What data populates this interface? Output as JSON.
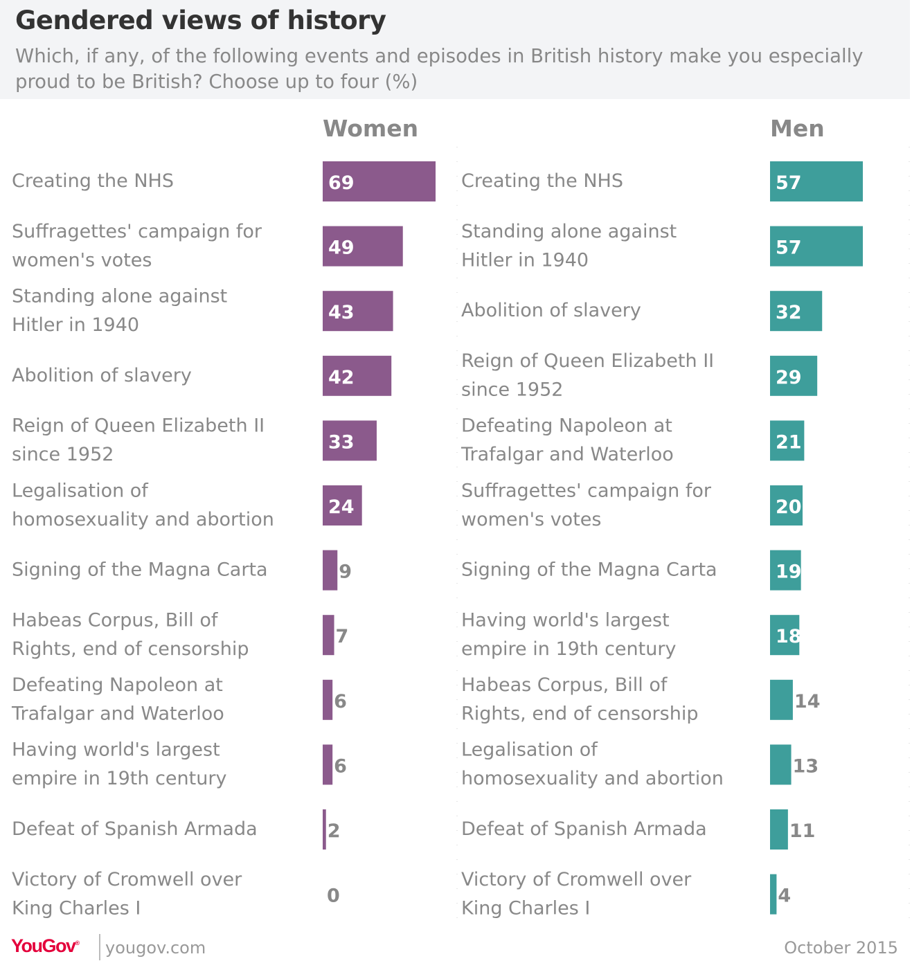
{
  "title": "Gendered views of history",
  "subtitle": "Which, if any, of the following events and episodes in British history make you especially proud to be British? Choose up to four (%)",
  "footer": {
    "brand": "YouGov",
    "site": "yougov.com",
    "date": "October 2015"
  },
  "colors": {
    "women": "#8b5a8c",
    "men": "#3e9e9b",
    "label_text": "#888888",
    "value_in_bar": "#ffffff",
    "value_outside_bar": "#888888",
    "brand": "#e4003b"
  },
  "chart_data": [
    {
      "type": "bar",
      "orientation": "horizontal",
      "title": "Women",
      "categories": [
        "Creating the NHS",
        "Suffragettes' campaign for women's votes",
        "Standing alone against Hitler in 1940",
        "Abolition of slavery",
        "Reign of Queen Elizabeth II since 1952",
        "Legalisation of homosexuality and abortion",
        "Signing of the Magna Carta",
        "Habeas Corpus, Bill of Rights, end of censorship",
        "Defeating Napoleon at Trafalgar and Waterloo",
        "Having world's largest empire in 19th century",
        "Defeat of Spanish Armada",
        "Victory of Cromwell over King Charles I"
      ],
      "values": [
        69,
        49,
        43,
        42,
        33,
        24,
        9,
        7,
        6,
        6,
        2,
        0
      ],
      "xlim": [
        0,
        69
      ],
      "grid": false,
      "color": "#8b5a8c"
    },
    {
      "type": "bar",
      "orientation": "horizontal",
      "title": "Men",
      "categories": [
        "Creating the NHS",
        "Standing alone against Hitler in 1940",
        "Abolition of slavery",
        "Reign of Queen Elizabeth II since 1952",
        "Defeating Napoleon at Trafalgar and Waterloo",
        "Suffragettes' campaign for women's votes",
        "Signing of the Magna Carta",
        "Having world's largest empire in 19th century",
        "Habeas Corpus, Bill of Rights, end of censorship",
        "Legalisation of homosexuality and abortion",
        "Defeat of Spanish Armada",
        "Victory of Cromwell over King Charles I"
      ],
      "values": [
        57,
        57,
        32,
        29,
        21,
        20,
        19,
        18,
        14,
        13,
        11,
        4
      ],
      "xlim": [
        0,
        57
      ],
      "grid": false,
      "color": "#3e9e9b"
    }
  ]
}
